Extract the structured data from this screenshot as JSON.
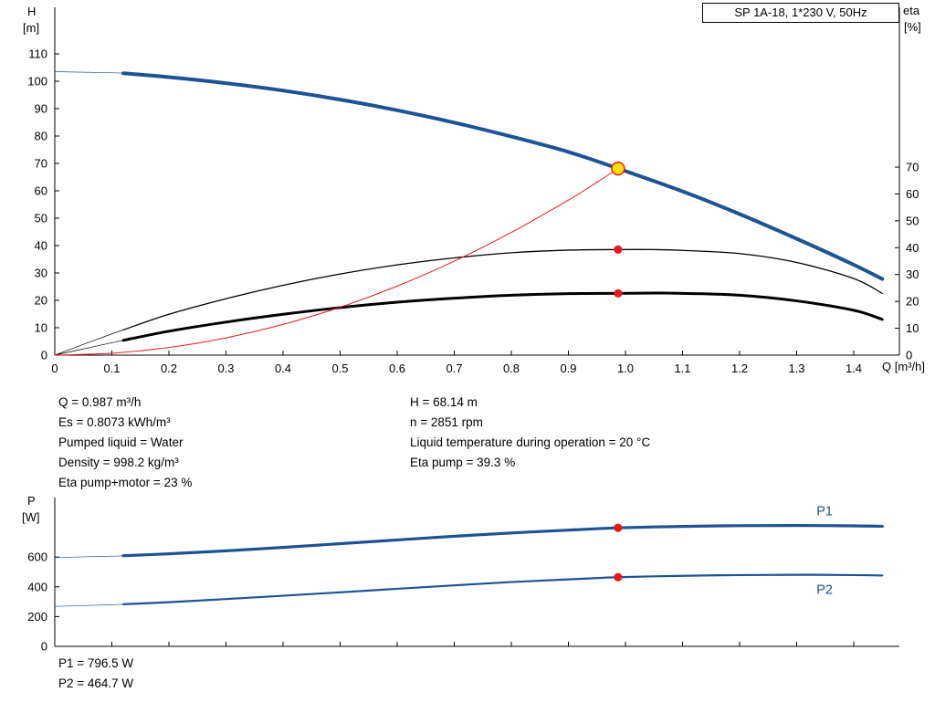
{
  "title_box": "SP 1A-18, 1*230 V, 50Hz",
  "colors": {
    "blue": "#1d5393",
    "red": "#e8191e",
    "duty_yellow": "#ffe000",
    "axis": "#000000"
  },
  "axis_corner_labels": {
    "h": "H",
    "h_unit": "[m]",
    "eta": "eta",
    "eta_unit": "[%]",
    "q": "Q [m³/h]",
    "p": "P",
    "p_unit": "[W]"
  },
  "info_left": [
    "Q = 0.987 m³/h",
    "Es = 0.8073 kWh/m³",
    "Pumped liquid = Water",
    "Density = 998.2 kg/m³",
    "Eta pump+motor = 23 %"
  ],
  "info_right": [
    "H = 68.14 m",
    "n = 2851 rpm",
    "Liquid temperature during operation = 20 °C",
    "Eta pump = 39.3 %"
  ],
  "power_info": [
    "P1 = 796.5 W",
    "P2 = 464.7 W"
  ],
  "chart_data": [
    {
      "type": "line",
      "name": "pump-performance-chart",
      "title": "SP 1A-18, 1*230 V, 50Hz",
      "x": {
        "label": "Q [m³/h]",
        "min": 0,
        "max": 1.48,
        "tick_values": [
          0,
          0.1,
          0.2,
          0.3,
          0.4,
          0.5,
          0.6,
          0.7,
          0.8,
          0.9,
          1.0,
          1.1,
          1.2,
          1.3,
          1.4
        ],
        "tick_labels": [
          "0",
          "0.1",
          "0.2",
          "0.3",
          "0.4",
          "0.5",
          "0.6",
          "0.7",
          "0.8",
          "0.9",
          "1.0",
          "1.1",
          "1.2",
          "1.3",
          "1.4"
        ]
      },
      "y_left": {
        "label": "H [m]",
        "min": 0,
        "max": 127,
        "tick_values": [
          0,
          10,
          20,
          30,
          40,
          50,
          60,
          70,
          80,
          90,
          100,
          110
        ],
        "tick_labels": [
          "0",
          "10",
          "20",
          "30",
          "40",
          "50",
          "60",
          "70",
          "80",
          "90",
          "100",
          "110"
        ]
      },
      "y_right": {
        "label": "eta [%]",
        "min": 0,
        "max": 129.5,
        "tick_values": [
          0,
          10,
          20,
          30,
          40,
          50,
          60,
          70
        ],
        "tick_labels": [
          "0",
          "10",
          "20",
          "30",
          "40",
          "50",
          "60",
          "70"
        ]
      },
      "series": [
        {
          "name": "head-curve",
          "axis": "left",
          "color": "#1d5393",
          "width": 4,
          "thin_until": 0.12,
          "points": [
            [
              0,
              103.5
            ],
            [
              0.1,
              103.1
            ],
            [
              0.12,
              102.9
            ],
            [
              0.2,
              101.5
            ],
            [
              0.3,
              99.3
            ],
            [
              0.4,
              96.6
            ],
            [
              0.5,
              93.3
            ],
            [
              0.6,
              89.4
            ],
            [
              0.7,
              84.9
            ],
            [
              0.8,
              79.8
            ],
            [
              0.9,
              74.2
            ],
            [
              0.987,
              68.14
            ],
            [
              1.1,
              59.8
            ],
            [
              1.2,
              51.5
            ],
            [
              1.3,
              42.5
            ],
            [
              1.4,
              33
            ],
            [
              1.45,
              27.8
            ]
          ]
        },
        {
          "name": "eta-pump-curve",
          "axis": "right",
          "color": "#000000",
          "width": 1.3,
          "thin_until": 0.12,
          "points": [
            [
              0,
              0
            ],
            [
              0.05,
              4
            ],
            [
              0.1,
              7.9
            ],
            [
              0.12,
              9.4
            ],
            [
              0.2,
              15.2
            ],
            [
              0.3,
              21
            ],
            [
              0.4,
              26
            ],
            [
              0.5,
              30.2
            ],
            [
              0.6,
              33.6
            ],
            [
              0.7,
              36.2
            ],
            [
              0.8,
              38.1
            ],
            [
              0.9,
              39.1
            ],
            [
              0.987,
              39.3
            ],
            [
              1.05,
              39.3
            ],
            [
              1.1,
              39
            ],
            [
              1.2,
              37.8
            ],
            [
              1.3,
              34.5
            ],
            [
              1.4,
              28.5
            ],
            [
              1.45,
              23
            ]
          ]
        },
        {
          "name": "eta-pump-motor-curve",
          "axis": "right",
          "color": "#000000",
          "width": 3,
          "thin_until": 0.12,
          "points": [
            [
              0,
              0
            ],
            [
              0.05,
              2.3
            ],
            [
              0.1,
              4.6
            ],
            [
              0.12,
              5.5
            ],
            [
              0.2,
              8.9
            ],
            [
              0.3,
              12.3
            ],
            [
              0.4,
              15.2
            ],
            [
              0.5,
              17.7
            ],
            [
              0.6,
              19.7
            ],
            [
              0.7,
              21.2
            ],
            [
              0.8,
              22.3
            ],
            [
              0.9,
              22.9
            ],
            [
              0.987,
              23
            ],
            [
              1.05,
              23.1
            ],
            [
              1.1,
              23
            ],
            [
              1.2,
              22.3
            ],
            [
              1.3,
              20.2
            ],
            [
              1.4,
              16.7
            ],
            [
              1.45,
              13.3
            ]
          ]
        },
        {
          "name": "system-curve",
          "axis": "left",
          "color": "#e8191e",
          "width": 1,
          "points": [
            [
              0,
              0
            ],
            [
              0.1,
              0.7
            ],
            [
              0.2,
              2.8
            ],
            [
              0.3,
              6.3
            ],
            [
              0.4,
              11.2
            ],
            [
              0.5,
              17.5
            ],
            [
              0.6,
              25.2
            ],
            [
              0.7,
              34.3
            ],
            [
              0.8,
              44.8
            ],
            [
              0.9,
              56.6
            ],
            [
              0.95,
              63.1
            ],
            [
              0.987,
              68.14
            ]
          ]
        }
      ],
      "markers": [
        {
          "name": "duty-point",
          "axis": "left",
          "q": 0.987,
          "value": 68.14,
          "style": "duty-point"
        },
        {
          "name": "eta-pump-point",
          "axis": "right",
          "q": 0.987,
          "value": 39.3,
          "style": "red-dot"
        },
        {
          "name": "eta-pump-motor-point",
          "axis": "right",
          "q": 0.987,
          "value": 23,
          "style": "red-dot"
        }
      ]
    },
    {
      "type": "line",
      "name": "power-chart",
      "x": {
        "label": "",
        "min": 0,
        "max": 1.48,
        "tick_values": [
          0,
          0.1,
          0.2,
          0.3,
          0.4,
          0.5,
          0.6,
          0.7,
          0.8,
          0.9,
          1.0,
          1.1,
          1.2,
          1.3,
          1.4
        ],
        "tick_labels": []
      },
      "y_left": {
        "label": "P [W]",
        "min": 0,
        "max": 1000,
        "tick_values": [
          0,
          200,
          400,
          600
        ],
        "tick_labels": [
          "0",
          "200",
          "400",
          "600"
        ]
      },
      "series": [
        {
          "name": "p1-curve",
          "axis": "left",
          "color": "#1d5393",
          "width": 3.2,
          "thin_until": 0.12,
          "end_label": "P1",
          "label_offset": [
            -72,
            -12
          ],
          "points": [
            [
              0,
              597
            ],
            [
              0.1,
              606
            ],
            [
              0.12,
              609
            ],
            [
              0.2,
              622
            ],
            [
              0.3,
              642
            ],
            [
              0.4,
              665
            ],
            [
              0.5,
              690
            ],
            [
              0.6,
              715
            ],
            [
              0.7,
              740
            ],
            [
              0.8,
              762
            ],
            [
              0.9,
              781
            ],
            [
              0.987,
              796.5
            ],
            [
              1.1,
              806
            ],
            [
              1.2,
              811
            ],
            [
              1.3,
              812
            ],
            [
              1.4,
              810
            ],
            [
              1.45,
              807
            ]
          ]
        },
        {
          "name": "p2-curve",
          "axis": "left",
          "color": "#1d5393",
          "width": 2.2,
          "thin_until": 0.12,
          "end_label": "P2",
          "label_offset": [
            -72,
            20
          ],
          "points": [
            [
              0,
              268
            ],
            [
              0.1,
              280
            ],
            [
              0.12,
              283
            ],
            [
              0.2,
              297
            ],
            [
              0.3,
              318
            ],
            [
              0.4,
              340
            ],
            [
              0.5,
              363
            ],
            [
              0.6,
              387
            ],
            [
              0.7,
              410
            ],
            [
              0.8,
              432
            ],
            [
              0.9,
              450
            ],
            [
              0.987,
              464.7
            ],
            [
              1.1,
              474
            ],
            [
              1.2,
              479
            ],
            [
              1.3,
              481
            ],
            [
              1.4,
              479
            ],
            [
              1.45,
              476
            ]
          ]
        }
      ],
      "markers": [
        {
          "name": "p1-point",
          "axis": "left",
          "q": 0.987,
          "value": 796.5,
          "style": "red-dot"
        },
        {
          "name": "p2-point",
          "axis": "left",
          "q": 0.987,
          "value": 464.7,
          "style": "red-dot"
        }
      ]
    }
  ]
}
